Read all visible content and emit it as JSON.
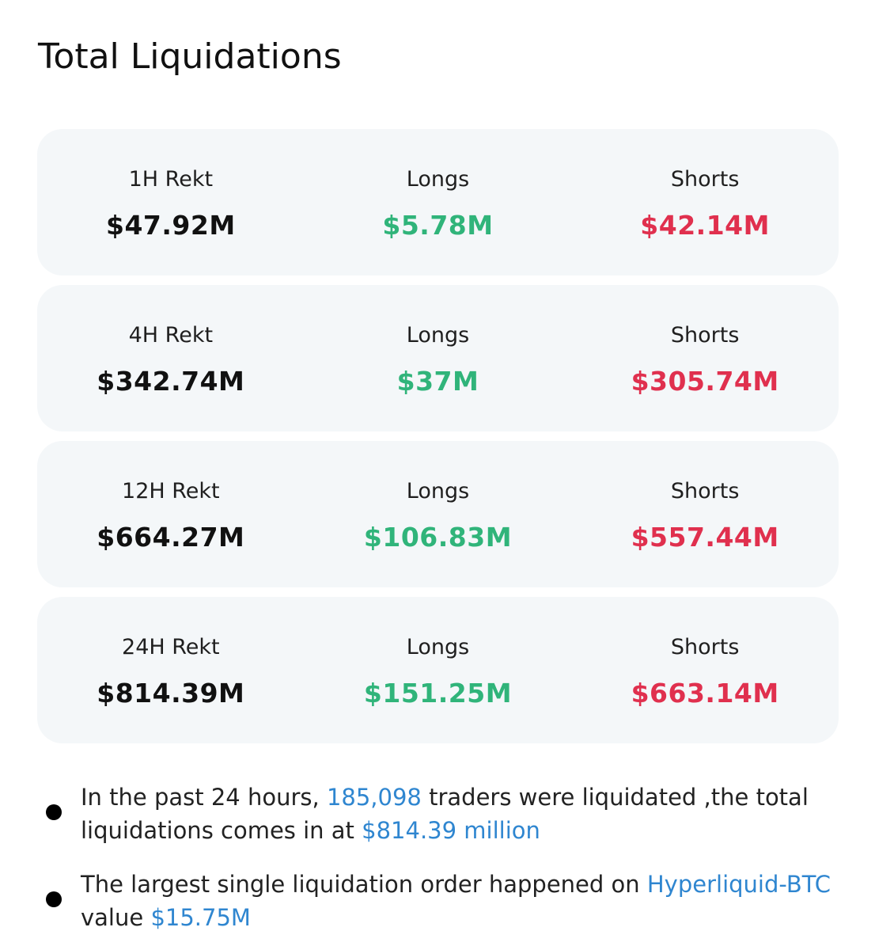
{
  "title": "Total Liquidations",
  "rows": [
    {
      "period": "1H Rekt",
      "total": "$47.92M",
      "longs_label": "Longs",
      "longs": "$5.78M",
      "shorts_label": "Shorts",
      "shorts": "$42.14M"
    },
    {
      "period": "4H Rekt",
      "total": "$342.74M",
      "longs_label": "Longs",
      "longs": "$37M",
      "shorts_label": "Shorts",
      "shorts": "$305.74M"
    },
    {
      "period": "12H Rekt",
      "total": "$664.27M",
      "longs_label": "Longs",
      "longs": "$106.83M",
      "shorts_label": "Shorts",
      "shorts": "$557.44M"
    },
    {
      "period": "24H Rekt",
      "total": "$814.39M",
      "longs_label": "Longs",
      "longs": "$151.25M",
      "shorts_label": "Shorts",
      "shorts": "$663.14M"
    }
  ],
  "notes": {
    "n1_a": "In the past 24 hours, ",
    "n1_traders": "185,098",
    "n1_b": " traders were liquidated ,the total liquidations comes in at ",
    "n1_amount": "$814.39 million",
    "n2_a": "The largest single liquidation order happened on ",
    "n2_exchange": "Hyperliquid-BTC",
    "n2_b": " value ",
    "n2_amount": "$15.75M"
  },
  "colors": {
    "long": "#30b47a",
    "short": "#e0304e",
    "highlight": "#2f86d0",
    "card": "#f4f7f9"
  }
}
